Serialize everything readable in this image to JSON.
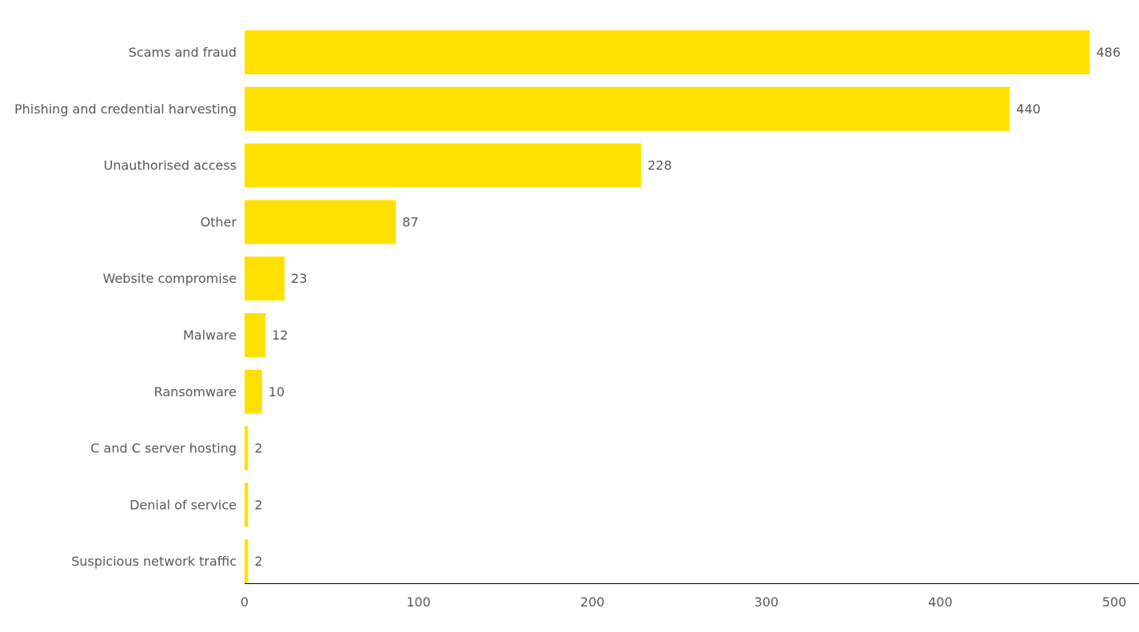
{
  "chart_data": {
    "type": "bar",
    "orientation": "horizontal",
    "title": "",
    "xlabel": "",
    "ylabel": "",
    "categories": [
      "Scams and fraud",
      "Phishing and credential harvesting",
      "Unauthorised access",
      "Other",
      "Website compromise",
      "Malware",
      "Ransomware",
      "C and C server hosting",
      "Denial of service",
      "Suspicious network traffic"
    ],
    "values": [
      486,
      440,
      228,
      87,
      23,
      12,
      10,
      2,
      2,
      2
    ],
    "xlim": [
      0,
      500
    ],
    "xticks": [
      0,
      100,
      200,
      300,
      400,
      500
    ],
    "grid": false,
    "legend": "none",
    "bar_color": "#FFE100",
    "axis_color": "#000000",
    "text_color": "#595959"
  }
}
